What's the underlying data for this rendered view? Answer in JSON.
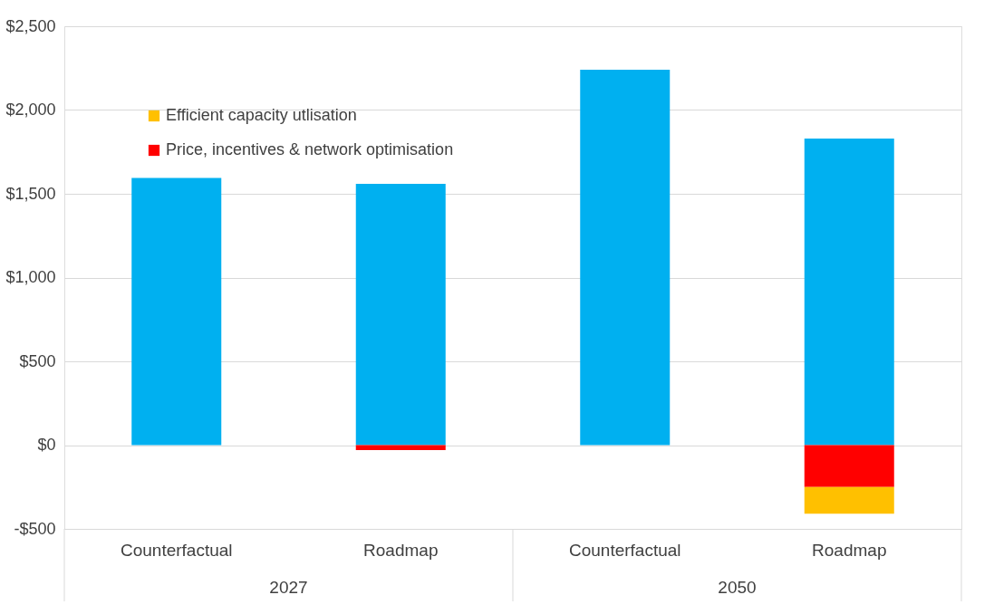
{
  "chart_data": {
    "type": "bar",
    "stacked": true,
    "categories": [
      "Counterfactual",
      "Roadmap",
      "Counterfactual",
      "Roadmap"
    ],
    "annotations": [
      "2027",
      "2050"
    ],
    "series": [
      {
        "color": "#00b0f0",
        "values": [
          1595,
          1560,
          2240,
          1830
        ]
      },
      {
        "name": "Price, incentives & network optimisation",
        "color": "#ff0000",
        "values": [
          0,
          -30,
          0,
          -250
        ]
      },
      {
        "name": "Efficient capacity utlisation",
        "color": "#ffc000",
        "values": [
          0,
          0,
          0,
          -160
        ]
      }
    ],
    "ylim": [
      -500,
      2500
    ],
    "yticks": [
      {
        "value": -500,
        "label": "-$500"
      },
      {
        "value": 0,
        "label": "$0"
      },
      {
        "value": 500,
        "label": "$500"
      },
      {
        "value": 1000,
        "label": "$1,000"
      },
      {
        "value": 1500,
        "label": "$1,500"
      },
      {
        "value": 2000,
        "label": "$2,000"
      },
      {
        "value": 2500,
        "label": "$2,500"
      }
    ],
    "grid": "y",
    "legend": "top left"
  }
}
